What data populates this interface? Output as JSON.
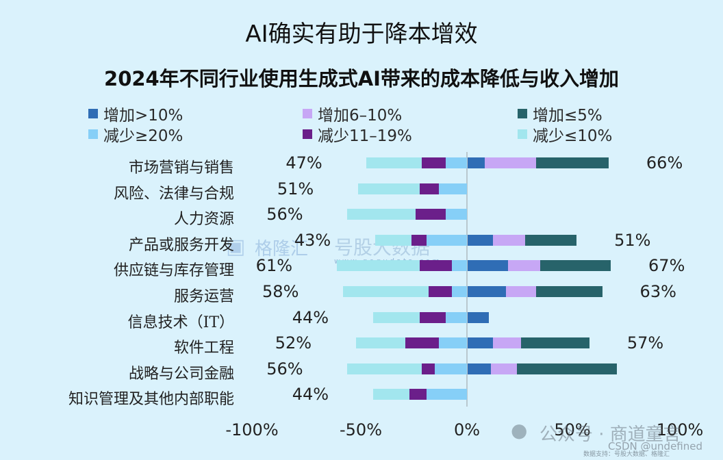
{
  "header": {
    "title": "AI确实有助于降本增效",
    "subtitle": "2024年不同行业使用生成式AI带来的成本降低与收入增加"
  },
  "legend": [
    {
      "label": "增加>10%",
      "color": "#2f6db5"
    },
    {
      "label": "增加6–10%",
      "color": "#c7a7f5"
    },
    {
      "label": "增加≤5%",
      "color": "#27636a"
    },
    {
      "label": "减少≥20%",
      "color": "#86cff7"
    },
    {
      "label": "减少11–19%",
      "color": "#6b1f8a"
    },
    {
      "label": "减少≤10%",
      "color": "#a2e6ee"
    }
  ],
  "axis": {
    "ticks": [
      "-100%",
      "-50%",
      "0%",
      "50%",
      "100%"
    ]
  },
  "watermarks": {
    "wechat": "公众号 · 商道童言",
    "csdn": "CSDN @undefined",
    "source": "数据支持：号股大数据、格隆汇",
    "gelonghui": "格隆汇",
    "gogu": "号股大数据",
    "gogu_url": "www.gogudata.com"
  },
  "chart_data": {
    "type": "bar",
    "orientation": "horizontal-diverging-stacked",
    "title": "AI确实有助于降本增效",
    "subtitle": "2024年不同行业使用生成式AI带来的成本降低与收入增加",
    "xlabel": "",
    "ylabel": "",
    "xlim": [
      -100,
      100
    ],
    "x_ticks": [
      "-100%",
      "-50%",
      "0%",
      "50%",
      "100%"
    ],
    "legend_position": "top",
    "grid": false,
    "categories": [
      "市场营销与销售",
      "风险、法律与合规",
      "人力资源",
      "产品或服务开发",
      "供应链与库存管理",
      "服务运营",
      "信息技术（IT）",
      "软件工程",
      "战略与公司金融",
      "知识管理及其他内部职能"
    ],
    "cost_reduction_total_labels": [
      "47%",
      "51%",
      "56%",
      "43%",
      "61%",
      "58%",
      "44%",
      "52%",
      "56%",
      "44%"
    ],
    "revenue_increase_total_labels": [
      "66%",
      "",
      "",
      "51%",
      "67%",
      "63%",
      "",
      "57%",
      "",
      ""
    ],
    "series": [
      {
        "name": "减少≥20%",
        "side": "cost",
        "color": "#86cff7",
        "values": [
          10,
          13,
          10,
          19,
          7,
          7,
          10,
          13,
          15,
          19
        ]
      },
      {
        "name": "减少11–19%",
        "side": "cost",
        "color": "#6b1f8a",
        "values": [
          11,
          9,
          14,
          7,
          15,
          11,
          12,
          16,
          6,
          8
        ]
      },
      {
        "name": "减少≤10%",
        "side": "cost",
        "color": "#a2e6ee",
        "values": [
          26,
          29,
          32,
          17,
          39,
          40,
          22,
          23,
          35,
          17
        ]
      },
      {
        "name": "增加>10%",
        "side": "revenue",
        "color": "#2f6db5",
        "values": [
          8,
          0,
          0,
          12,
          19,
          18,
          10,
          12,
          11,
          0
        ]
      },
      {
        "name": "增加6–10%",
        "side": "revenue",
        "color": "#c7a7f5",
        "values": [
          24,
          0,
          0,
          15,
          15,
          14,
          0,
          13,
          12,
          0
        ]
      },
      {
        "name": "增加≤5%",
        "side": "revenue",
        "color": "#27636a",
        "values": [
          34,
          0,
          0,
          24,
          33,
          31,
          0,
          32,
          47,
          0
        ]
      }
    ]
  }
}
